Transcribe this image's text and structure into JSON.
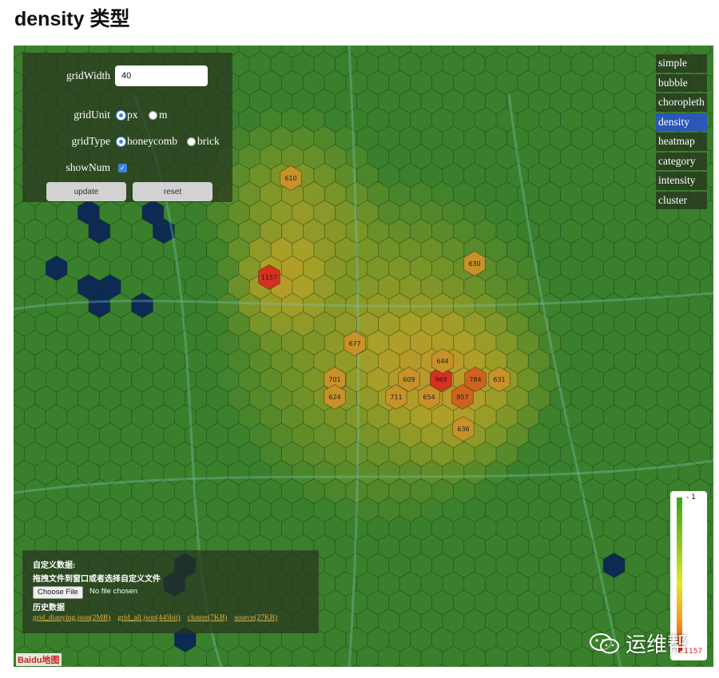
{
  "page": {
    "title": "density 类型"
  },
  "controls": {
    "grid_width_label": "gridWidth",
    "grid_width_value": "40",
    "grid_unit_label": "gridUnit",
    "unit_options": [
      "px",
      "m"
    ],
    "unit_selected": "px",
    "grid_type_label": "gridType",
    "type_options": [
      "honeycomb",
      "brick"
    ],
    "type_selected": "honeycomb",
    "show_num_label": "showNum",
    "show_num_checked": true,
    "update_label": "update",
    "reset_label": "reset"
  },
  "menu": {
    "items": [
      "simple",
      "bubble",
      "choropleth",
      "density",
      "heatmap",
      "category",
      "intensity",
      "cluster"
    ],
    "active": "density"
  },
  "legend": {
    "min": "1",
    "max": "1157"
  },
  "data_panel": {
    "title": "自定义数据:",
    "drag_hint": "拖拽文件到窗口或者选择自定义文件",
    "choose_file_label": "Choose File",
    "no_file_text": "No file chosen",
    "history_title": "历史数据",
    "history_links": [
      "grid_dianying.json(2MB)",
      "grid_all.json(445bit)",
      "cluster(7KB)",
      "source(27KB)"
    ]
  },
  "map": {
    "brand": "Baidu地图",
    "watermark": "运维帮",
    "hotspots": [
      {
        "label": "1157",
        "count": 1157
      },
      {
        "label": "969",
        "count": 969
      },
      {
        "label": "857",
        "count": 857
      },
      {
        "label": "784",
        "count": 784
      },
      {
        "label": "701",
        "count": 701
      },
      {
        "label": "711",
        "count": 711
      },
      {
        "label": "677",
        "count": 677
      },
      {
        "label": "654",
        "count": 654
      },
      {
        "label": "644",
        "count": 644
      },
      {
        "label": "636",
        "count": 636
      },
      {
        "label": "631",
        "count": 631
      },
      {
        "label": "630",
        "count": 630
      },
      {
        "label": "624",
        "count": 624
      },
      {
        "label": "610",
        "count": 610
      },
      {
        "label": "609",
        "count": 609
      }
    ]
  },
  "colors": {
    "map_base": "#3c7f2c",
    "menu_active": "#2a57b8",
    "empty_cell": "#0d2a52"
  }
}
